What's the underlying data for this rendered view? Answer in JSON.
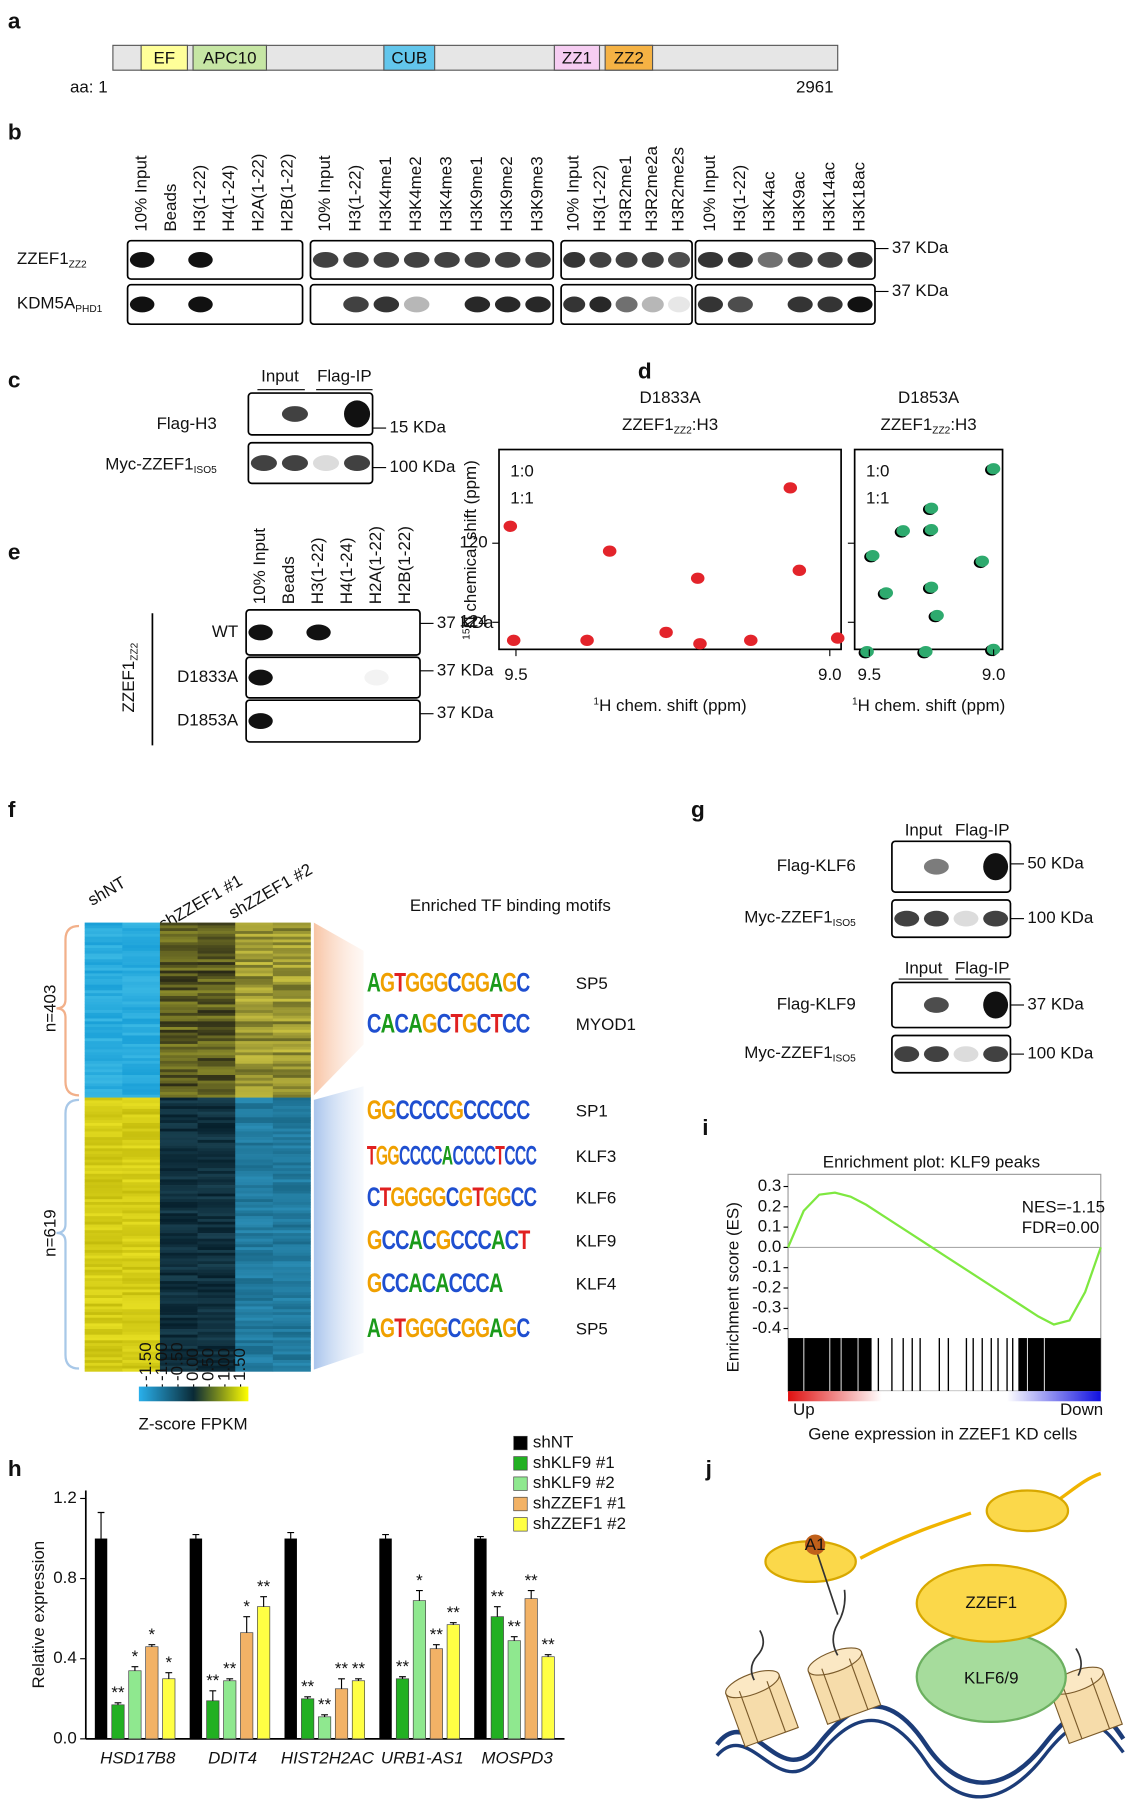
{
  "a": {
    "label": "a",
    "domains": [
      {
        "name": "EF",
        "color": "#ffff99"
      },
      {
        "name": "APC10",
        "color": "#c6e6a4"
      },
      {
        "name": "CUB",
        "color": "#62c6ec"
      },
      {
        "name": "ZZ1",
        "color": "#f6cdf2"
      },
      {
        "name": "ZZ2",
        "color": "#f5b244"
      }
    ],
    "start": "aa: 1",
    "end": "2961"
  },
  "b": {
    "label": "b",
    "groups": [
      [
        "10% Input",
        "Beads",
        "H3(1-22)",
        "H4(1-24)",
        "H2A(1-22)",
        "H2B(1-22)"
      ],
      [
        "10% Input",
        "H3(1-22)",
        "H3K4me1",
        "H3K4me2",
        "H3K4me3",
        "H3K9me1",
        "H3K9me2",
        "H3K9me3"
      ],
      [
        "10% Input",
        "H3(1-22)",
        "H3R2me1",
        "H3R2me2a",
        "H3R2me2s"
      ],
      [
        "10% Input",
        "H3(1-22)",
        "H3K4ac",
        "H3K9ac",
        "H3K14ac",
        "H3K18ac"
      ]
    ],
    "rows": [
      {
        "name": "ZZEF1",
        "sub": "ZZ2",
        "marker": "37 KDa"
      },
      {
        "name": "KDM5A",
        "sub": "PHD1",
        "marker": "37 KDa"
      }
    ]
  },
  "c": {
    "label": "c",
    "headers": [
      "Input",
      "Flag-IP"
    ],
    "rows": [
      {
        "name": "Flag-H3",
        "marker": "15 KDa"
      },
      {
        "name": "Myc-ZZEF1",
        "sub": "ISO5",
        "marker": "100 KDa"
      }
    ]
  },
  "d": {
    "label": "d",
    "ylabel_sup": "15",
    "ylabel": "N chemical shift (ppm)",
    "xlabel_sup": "1",
    "xlabel": "H chem. shift (ppm)",
    "ylim": [
      115.26,
      125.37
    ],
    "yticks": [
      120,
      124
    ],
    "spectra": [
      {
        "mutant": "D1833A",
        "protein": "ZZEF1",
        "sub": "ZZ2",
        "suffix": ":H3",
        "ratios": [
          "1:0",
          "1:1"
        ],
        "color": "#e3242b",
        "xlim": [
          9.527,
          8.982
        ],
        "xticks": [
          9.5,
          {
            "value": 9,
            "label": "9.0"
          }
        ]
      },
      {
        "mutant": "D1853A",
        "protein": "ZZEF1",
        "sub": "ZZ2",
        "suffix": ":H3",
        "ratios": [
          "1:0",
          "1:1"
        ],
        "color": "#2eaa6e",
        "xlim": [
          9.559,
          8.964
        ],
        "xticks": [
          9.5,
          {
            "value": 9,
            "label": "9.0"
          }
        ]
      }
    ]
  },
  "e": {
    "label": "e",
    "lanes": [
      "10% Input",
      "Beads",
      "H3(1-22)",
      "H4(1-24)",
      "H2A(1-22)",
      "H2B(1-22)"
    ],
    "protein": "ZZEF1",
    "sub": "ZZ2",
    "rows": [
      {
        "name": "WT",
        "marker": "37 KDa"
      },
      {
        "name": "D1833A",
        "marker": "37 KDa"
      },
      {
        "name": "D1853A",
        "marker": "37 KDa"
      }
    ]
  },
  "f": {
    "label": "f",
    "columns": [
      "shNT",
      "shZZEF1 #1",
      "shZZEF1 #2"
    ],
    "motif_title": "Enriched TF binding motifs",
    "clusters": [
      {
        "n": "n=403",
        "motifs": [
          {
            "logo": "AGTGGGCGGAGC",
            "name": "SP5"
          },
          {
            "logo": "CACAGCTGCTCC",
            "name": "MYOD1"
          }
        ]
      },
      {
        "n": "n=619",
        "motifs": [
          {
            "logo": "GGCCCCGCCCCC",
            "name": "SP1"
          },
          {
            "logo": "TGGCCCCACCCCTCCC",
            "name": "KLF3"
          },
          {
            "logo": "CTGGGGCGTGGCC",
            "name": "KLF6"
          },
          {
            "logo": "GCCACGCCCACT",
            "name": "KLF9"
          },
          {
            "logo": "GCCACACCCA",
            "name": "KLF4"
          },
          {
            "logo": "AGTGGGCGGAGC",
            "name": "SP5"
          }
        ]
      }
    ],
    "colorbar": {
      "label": "Z-score FPKM",
      "lim": [
        -1.75,
        1.75
      ],
      "ticks": [
        {
          "value": -1.5,
          "label": "-1.50"
        },
        {
          "value": -1,
          "label": "-1.00"
        },
        {
          "value": -0.5,
          "label": "-0.50"
        },
        {
          "value": 0,
          "label": "0.00"
        },
        {
          "value": 0.5,
          "label": "0.50"
        },
        {
          "value": 1,
          "label": "1.00"
        },
        {
          "value": 1.5,
          "label": "1.50"
        }
      ]
    }
  },
  "g": {
    "label": "g",
    "blots": [
      {
        "headers": [
          "Input",
          "Flag-IP"
        ],
        "rows": [
          {
            "name": "Flag-KLF6",
            "marker": "50 KDa"
          },
          {
            "name": "Myc-ZZEF1",
            "sub": "ISO5",
            "marker": "100 KDa"
          }
        ]
      },
      {
        "headers": [
          "Input",
          "Flag-IP"
        ],
        "rows": [
          {
            "name": "Flag-KLF9",
            "marker": "37 KDa"
          },
          {
            "name": "Myc-ZZEF1",
            "sub": "ISO5",
            "marker": "100 KDa"
          }
        ]
      }
    ]
  },
  "h": {
    "label": "h",
    "type": "bar",
    "ylabel": "Relative expression",
    "categories": [
      "HSD17B8",
      "DDIT4",
      "HIST2H2AC",
      "URB1-AS1",
      "MOSPD3"
    ],
    "ylim": [
      0,
      1.24
    ],
    "yticks": [
      {
        "value": 0,
        "label": "0.0"
      },
      0.4,
      0.8,
      1.2
    ],
    "series": [
      {
        "name": "shNT",
        "color": "#000000",
        "values": [
          1.0,
          1.0,
          1.0,
          1.0,
          1.0
        ],
        "errors": [
          0.13,
          0.02,
          0.03,
          0.02,
          0.01
        ]
      },
      {
        "name": "shKLF9 #1",
        "color": "#22b022",
        "values": [
          0.17,
          0.19,
          0.2,
          0.3,
          0.61
        ],
        "errors": [
          0.01,
          0.05,
          0.01,
          0.01,
          0.05
        ],
        "stars": [
          "**",
          "**",
          "**",
          "**",
          "**"
        ]
      },
      {
        "name": "shKLF9 #2",
        "color": "#8fe88f",
        "values": [
          0.34,
          0.29,
          0.11,
          0.69,
          0.49
        ],
        "errors": [
          0.02,
          0.01,
          0.01,
          0.05,
          0.02
        ],
        "stars": [
          "*",
          "**",
          "**",
          "*",
          "**"
        ]
      },
      {
        "name": "shZZEF1 #1",
        "color": "#f2b266",
        "values": [
          0.46,
          0.53,
          0.25,
          0.45,
          0.7
        ],
        "errors": [
          0.01,
          0.08,
          0.05,
          0.02,
          0.04
        ],
        "stars": [
          "*",
          "*",
          "**",
          "**",
          "**"
        ]
      },
      {
        "name": "shZZEF1 #2",
        "color": "#ffff44",
        "values": [
          0.3,
          0.66,
          0.29,
          0.57,
          0.41
        ],
        "errors": [
          0.03,
          0.05,
          0.01,
          0.01,
          0.01
        ],
        "stars": [
          "*",
          "**",
          "**",
          "**",
          "**"
        ]
      }
    ]
  },
  "i": {
    "label": "i",
    "type": "line",
    "title": "Enrichment plot: KLF9 peaks",
    "nes": "NES=-1.15",
    "fdr": "FDR=0.00",
    "ylabel": "Enrichment score (ES)",
    "xlabel": "Gene expression in ZZEF1 KD cells",
    "up": "Up",
    "down": "Down",
    "color": "#7ee840",
    "ylim": [
      -0.43,
      0.36
    ],
    "yticks": [
      0.3,
      0.2,
      0.1,
      {
        "value": 0,
        "label": "0.0"
      },
      -0.1,
      -0.2,
      -0.3,
      -0.4
    ],
    "values": [
      0,
      0.18,
      0.26,
      0.27,
      0.25,
      0.21,
      0.16,
      0.11,
      0.06,
      0.01,
      -0.04,
      -0.09,
      -0.14,
      -0.19,
      -0.24,
      -0.29,
      -0.34,
      -0.38,
      -0.36,
      -0.22,
      0
    ]
  },
  "j": {
    "label": "j",
    "nodes": [
      "ZZEF1",
      "KLF6/9",
      "A1"
    ]
  }
}
